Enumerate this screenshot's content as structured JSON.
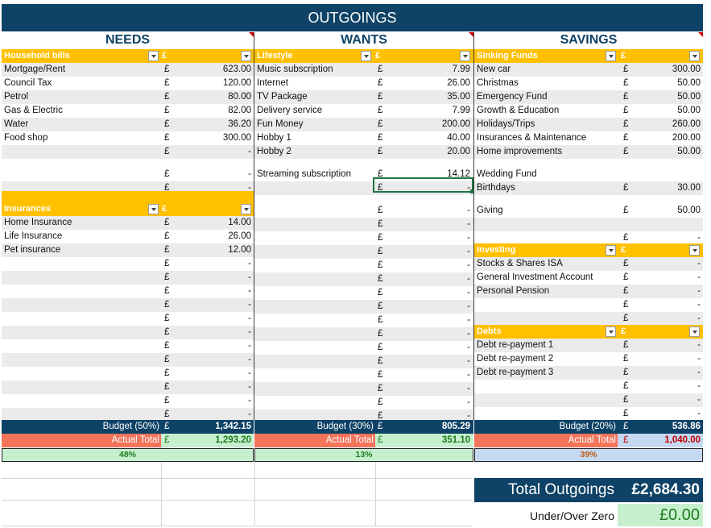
{
  "title": "OUTGOINGS",
  "colors": {
    "navy": "#0e4266",
    "yellow": "#ffc000",
    "salmon": "#f4745a",
    "green_bg": "#c6efce",
    "green_text": "#1e7b1e",
    "blue_bg": "#c5d9f1",
    "orange_text": "#c55a11",
    "stripe": "#ebebeb",
    "red_text": "#c00000"
  },
  "needs": {
    "heading": "NEEDS",
    "household": {
      "label": "Household bills",
      "cur": "£",
      "rows": [
        {
          "name": "Mortgage/Rent",
          "cur": "£",
          "amount": "623.00"
        },
        {
          "name": "Council Tax",
          "cur": "£",
          "amount": "120.00"
        },
        {
          "name": "Petrol",
          "cur": "£",
          "amount": "80.00"
        },
        {
          "name": "Gas & Electric",
          "cur": "£",
          "amount": "82.00"
        },
        {
          "name": "Water",
          "cur": "£",
          "amount": "36.20"
        },
        {
          "name": "Food shop",
          "cur": "£",
          "amount": "300.00"
        },
        {
          "name": "",
          "cur": "£",
          "amount": "-"
        },
        {
          "name": "",
          "cur": "£",
          "amount": "-"
        },
        {
          "name": "",
          "cur": "£",
          "amount": "-"
        }
      ]
    },
    "insurances": {
      "label": "Insurances",
      "cur": "£",
      "rows": [
        {
          "name": "Home Insurance",
          "cur": "£",
          "amount": "14.00"
        },
        {
          "name": "Life Insurance",
          "cur": "£",
          "amount": "26.00"
        },
        {
          "name": "Pet insurance",
          "cur": "£",
          "amount": "12.00"
        },
        {
          "name": "",
          "cur": "£",
          "amount": "-"
        },
        {
          "name": "",
          "cur": "£",
          "amount": "-"
        },
        {
          "name": "",
          "cur": "£",
          "amount": "-"
        },
        {
          "name": "",
          "cur": "£",
          "amount": "-"
        },
        {
          "name": "",
          "cur": "£",
          "amount": "-"
        },
        {
          "name": "",
          "cur": "£",
          "amount": "-"
        },
        {
          "name": "",
          "cur": "£",
          "amount": "-"
        },
        {
          "name": "",
          "cur": "£",
          "amount": "-"
        },
        {
          "name": "",
          "cur": "£",
          "amount": "-"
        },
        {
          "name": "",
          "cur": "£",
          "amount": "-"
        },
        {
          "name": "",
          "cur": "£",
          "amount": "-"
        },
        {
          "name": "",
          "cur": "£",
          "amount": "-"
        }
      ]
    },
    "budget_label": "Budget (50%)",
    "budget_cur": "£",
    "budget": "1,342.15",
    "actual_label": "Actual Total",
    "actual_cur": "£",
    "actual": "1,293.20",
    "percent": "48%"
  },
  "wants": {
    "heading": "WANTS",
    "lifestyle": {
      "label": "Lifestyle",
      "cur": "£",
      "rows": [
        {
          "name": "Music subscription",
          "cur": "£",
          "amount": "7.99"
        },
        {
          "name": "Internet",
          "cur": "£",
          "amount": "26.00"
        },
        {
          "name": "TV Package",
          "cur": "£",
          "amount": "35.00"
        },
        {
          "name": "Delivery service",
          "cur": "£",
          "amount": "7.99"
        },
        {
          "name": "Fun Money",
          "cur": "£",
          "amount": "200.00"
        },
        {
          "name": "Hobby 1",
          "cur": "£",
          "amount": "40.00"
        },
        {
          "name": "Hobby 2",
          "cur": "£",
          "amount": "20.00"
        },
        {
          "name": "Streaming subscription",
          "cur": "£",
          "amount": "14.12"
        },
        {
          "name": "",
          "cur": "£",
          "amount": "-"
        },
        {
          "name": "",
          "cur": "£",
          "amount": "-"
        },
        {
          "name": "",
          "cur": "£",
          "amount": "-"
        },
        {
          "name": "",
          "cur": "£",
          "amount": "-"
        },
        {
          "name": "",
          "cur": "£",
          "amount": "-"
        },
        {
          "name": "",
          "cur": "£",
          "amount": "-"
        },
        {
          "name": "",
          "cur": "£",
          "amount": "-"
        },
        {
          "name": "",
          "cur": "£",
          "amount": "-"
        },
        {
          "name": "",
          "cur": "£",
          "amount": "-"
        },
        {
          "name": "",
          "cur": "£",
          "amount": "-"
        },
        {
          "name": "",
          "cur": "£",
          "amount": "-"
        },
        {
          "name": "",
          "cur": "£",
          "amount": "-"
        },
        {
          "name": "",
          "cur": "£",
          "amount": "-"
        },
        {
          "name": "",
          "cur": "£",
          "amount": "-"
        },
        {
          "name": "",
          "cur": "£",
          "amount": "-"
        },
        {
          "name": "",
          "cur": "£",
          "amount": "-"
        },
        {
          "name": "",
          "cur": "£",
          "amount": "-"
        },
        {
          "name": "",
          "cur": "£",
          "amount": "-"
        }
      ]
    },
    "budget_label": "Budget (30%)",
    "budget_cur": "£",
    "budget": "805.29",
    "actual_label": "Actual Total",
    "actual_cur": "£",
    "actual": "351.10",
    "percent": "13%"
  },
  "savings": {
    "heading": "SAVINGS",
    "sinking": {
      "label": "Sinking Funds",
      "cur": "£",
      "rows": [
        {
          "name": "New car",
          "cur": "£",
          "amount": "300.00"
        },
        {
          "name": "Christmas",
          "cur": "£",
          "amount": "50.00"
        },
        {
          "name": "Emergency Fund",
          "cur": "£",
          "amount": "50.00"
        },
        {
          "name": "Growth & Education",
          "cur": "£",
          "amount": "50.00"
        },
        {
          "name": "Holidays/Trips",
          "cur": "£",
          "amount": "260.00"
        },
        {
          "name": "Insurances & Maintenance",
          "cur": "£",
          "amount": "200.00"
        },
        {
          "name": "Home improvements",
          "cur": "£",
          "amount": "50.00"
        },
        {
          "name": "Wedding Fund",
          "cur": "",
          "amount": ""
        },
        {
          "name": "Birthdays",
          "cur": "£",
          "amount": "30.00"
        },
        {
          "name": "Giving",
          "cur": "£",
          "amount": "50.00"
        },
        {
          "name": "",
          "cur": "",
          "amount": ""
        },
        {
          "name": "",
          "cur": "£",
          "amount": "-"
        }
      ]
    },
    "investing": {
      "label": "Investing",
      "cur": "£",
      "rows": [
        {
          "name": "Stocks & Shares ISA",
          "cur": "£",
          "amount": "-"
        },
        {
          "name": "General Investment Account",
          "cur": "£",
          "amount": "-"
        },
        {
          "name": "Personal Pension",
          "cur": "£",
          "amount": "-"
        },
        {
          "name": "",
          "cur": "£",
          "amount": "-"
        },
        {
          "name": "",
          "cur": "£",
          "amount": "-"
        }
      ]
    },
    "debts": {
      "label": "Debts",
      "cur": "£",
      "rows": [
        {
          "name": "Debt re-payment 1",
          "cur": "£",
          "amount": "-"
        },
        {
          "name": "Debt re-payment 2",
          "cur": "£",
          "amount": "-"
        },
        {
          "name": "Debt re-payment 3",
          "cur": "£",
          "amount": "-"
        },
        {
          "name": "",
          "cur": "£",
          "amount": "-"
        },
        {
          "name": "",
          "cur": "£",
          "amount": "-"
        },
        {
          "name": "",
          "cur": "£",
          "amount": "-"
        }
      ]
    },
    "budget_label": "Budget (20%)",
    "budget_cur": "£",
    "budget": "536.86",
    "actual_label": "Actual Total",
    "actual_cur": "£",
    "actual": "1,040.00",
    "percent": "39%"
  },
  "total": {
    "label": "Total Outgoings",
    "value": "£2,684.30"
  },
  "under_over": {
    "label": "Under/Over Zero",
    "value": "£0.00"
  }
}
